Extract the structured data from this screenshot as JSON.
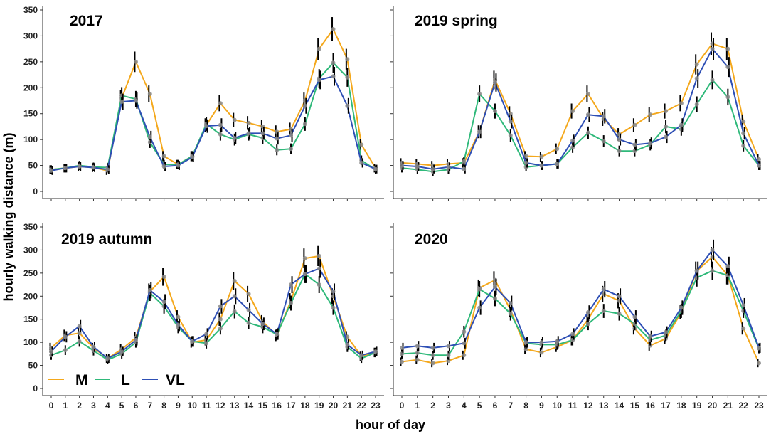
{
  "chart_data": {
    "type": "line",
    "xlabel": "hour of day",
    "ylabel": "hourly walking distance (m)",
    "ylim": [
      0,
      350
    ],
    "yticks": [
      "0",
      "50",
      "100",
      "150",
      "200",
      "250",
      "300",
      "350"
    ],
    "x": [
      "0",
      "1",
      "2",
      "3",
      "4",
      "5",
      "6",
      "7",
      "8",
      "9",
      "10",
      "11",
      "12",
      "13",
      "14",
      "15",
      "16",
      "17",
      "18",
      "19",
      "20",
      "21",
      "22",
      "23"
    ],
    "legend": [
      {
        "name": "M",
        "color": "#F4A81C"
      },
      {
        "name": "L",
        "color": "#2FB97A"
      },
      {
        "name": "VL",
        "color": "#2E4FB5"
      }
    ],
    "panels": [
      {
        "title": "2017",
        "series": [
          {
            "name": "M",
            "values": [
              42,
              45,
              48,
              46,
              40,
              180,
              250,
              188,
              68,
              52,
              68,
              128,
              170,
              138,
              132,
              125,
              115,
              120,
              175,
              275,
              313,
              255,
              90,
              45
            ]
          },
          {
            "name": "L",
            "values": [
              42,
              45,
              50,
              47,
              46,
              185,
              178,
              95,
              52,
              52,
              68,
              130,
              110,
              100,
              110,
              103,
              80,
              82,
              130,
              218,
              248,
              220,
              60,
              42
            ]
          },
          {
            "name": "VL",
            "values": [
              40,
              45,
              48,
              46,
              42,
              173,
              175,
              105,
              48,
              50,
              66,
              126,
              128,
              103,
              112,
              112,
              102,
              108,
              165,
              215,
              222,
              165,
              55,
              43
            ]
          }
        ]
      },
      {
        "title": "2019 spring",
        "series": [
          {
            "name": "M",
            "values": [
              55,
              53,
              50,
              53,
              55,
              115,
              215,
              150,
              68,
              67,
              82,
              155,
              188,
              140,
              110,
              128,
              148,
              155,
              170,
              245,
              285,
              275,
              135,
              62
            ]
          },
          {
            "name": "L",
            "values": [
              45,
              42,
              38,
              42,
              58,
              188,
              155,
              108,
              47,
              50,
              53,
              85,
              113,
              97,
              78,
              78,
              90,
              125,
              120,
              168,
              215,
              182,
              88,
              50
            ]
          },
          {
            "name": "VL",
            "values": [
              50,
              48,
              43,
              47,
              43,
              115,
              210,
              135,
              55,
              50,
              53,
              98,
              148,
              145,
              100,
              90,
              93,
              105,
              128,
              218,
              275,
              240,
              112,
              50
            ]
          }
        ]
      },
      {
        "title": "2019 autumn",
        "series": [
          {
            "name": "M",
            "values": [
              88,
              115,
              120,
              88,
              65,
              85,
              110,
              210,
              242,
              155,
              100,
              105,
              150,
              233,
              205,
              145,
              115,
              190,
              282,
              287,
              200,
              112,
              70,
              78
            ]
          },
          {
            "name": "L",
            "values": [
              72,
              83,
              102,
              82,
              62,
              75,
              100,
              207,
              178,
              133,
              102,
              98,
              130,
              167,
              142,
              133,
              117,
              185,
              248,
              225,
              175,
              90,
              65,
              78
            ]
          },
          {
            "name": "VL",
            "values": [
              80,
              112,
              135,
              90,
              65,
              80,
              105,
              213,
              188,
              138,
              102,
              118,
              178,
              200,
              170,
              140,
              118,
              225,
              248,
              260,
              210,
              95,
              72,
              80
            ]
          }
        ]
      },
      {
        "title": "2020",
        "series": [
          {
            "name": "M",
            "values": [
              58,
              62,
              55,
              60,
              72,
              218,
              235,
              170,
              85,
              78,
              90,
              105,
              150,
              205,
              190,
              130,
              93,
              108,
              165,
              255,
              285,
              245,
              130,
              55
            ]
          },
          {
            "name": "L",
            "values": [
              75,
              77,
              72,
              72,
              123,
              215,
              195,
              162,
              98,
              95,
              95,
              105,
              140,
              168,
              162,
              140,
              105,
              115,
              168,
              240,
              255,
              245,
              168,
              87
            ]
          },
          {
            "name": "VL",
            "values": [
              88,
              92,
              88,
              92,
              98,
              175,
              220,
              185,
              100,
              100,
              102,
              118,
              165,
              215,
              200,
              155,
              113,
              122,
              175,
              255,
              300,
              265,
              180,
              88
            ]
          }
        ]
      }
    ]
  }
}
